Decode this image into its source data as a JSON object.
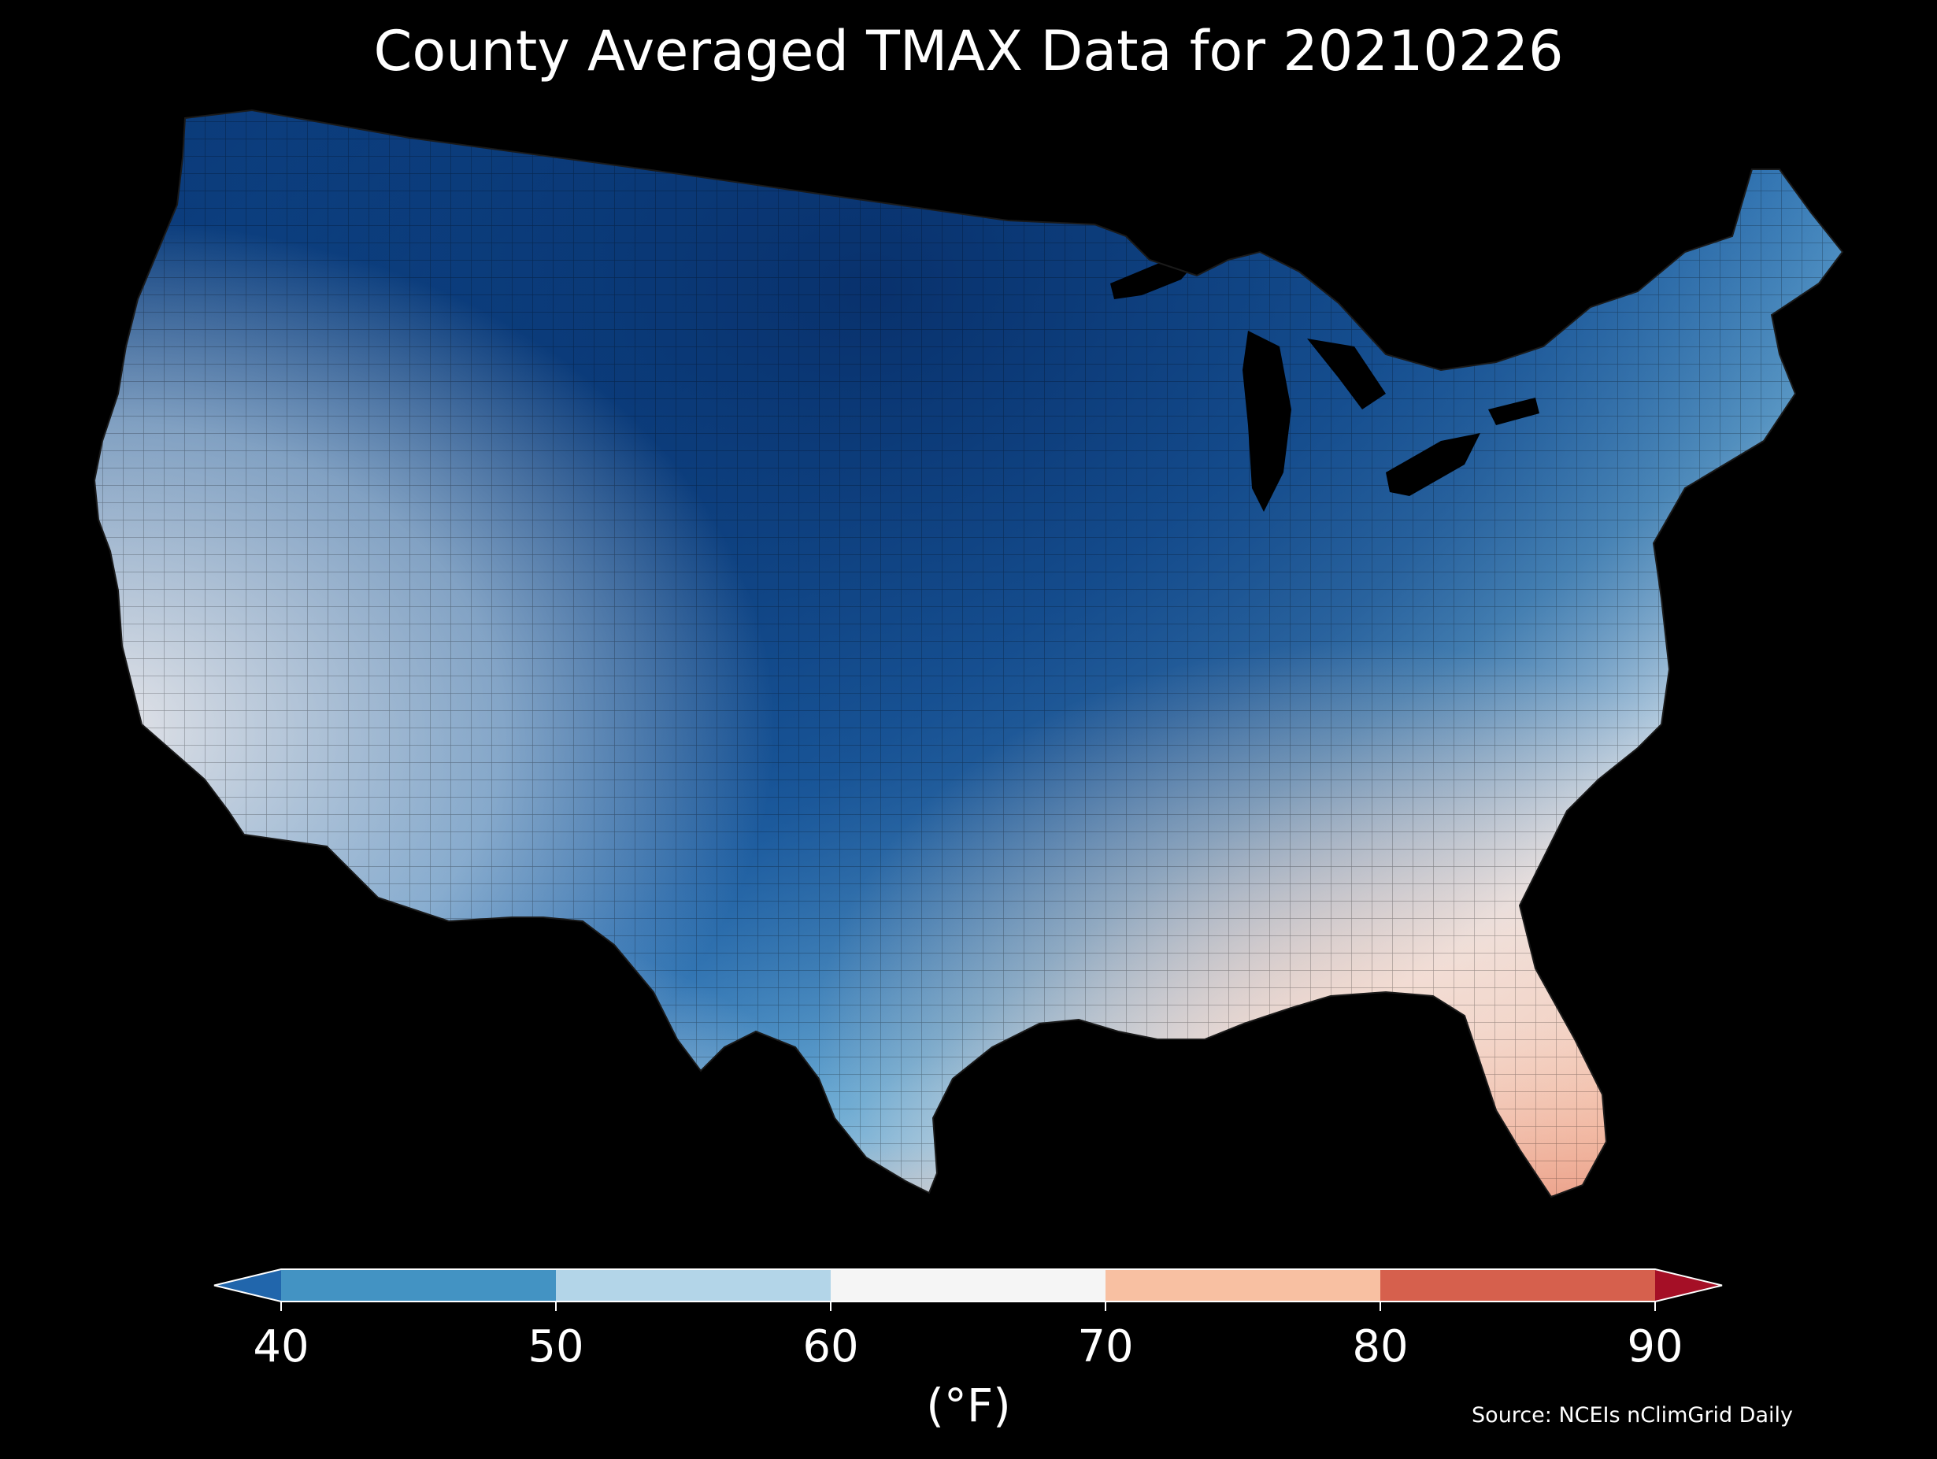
{
  "title": "County Averaged TMAX Data for 20210226",
  "colorbar": {
    "unit_label": "(°F)",
    "ticks": [
      "40",
      "50",
      "60",
      "70",
      "80",
      "90"
    ],
    "bins": [
      {
        "from": 40,
        "to": 50,
        "color": "#4393c3"
      },
      {
        "from": 50,
        "to": 60,
        "color": "#b3d5e8"
      },
      {
        "from": 60,
        "to": 70,
        "color": "#f5f5f5"
      },
      {
        "from": 70,
        "to": 80,
        "color": "#f8c0a2"
      },
      {
        "from": 80,
        "to": 90,
        "color": "#d6604d"
      }
    ],
    "under_color": "#2166ac",
    "over_color": "#a50f26",
    "range": [
      40,
      90
    ],
    "extend": "both"
  },
  "source": "Source: NCEIs nClimGrid Daily",
  "colors": {
    "background": "#000000",
    "cold_deep": "#08306b",
    "cold": "#1f5fa8",
    "cool": "#4393c3",
    "mild": "#b3d5e8",
    "neutral": "#f5f5f5",
    "warm": "#f8c0a2",
    "hot": "#d6604d"
  }
}
